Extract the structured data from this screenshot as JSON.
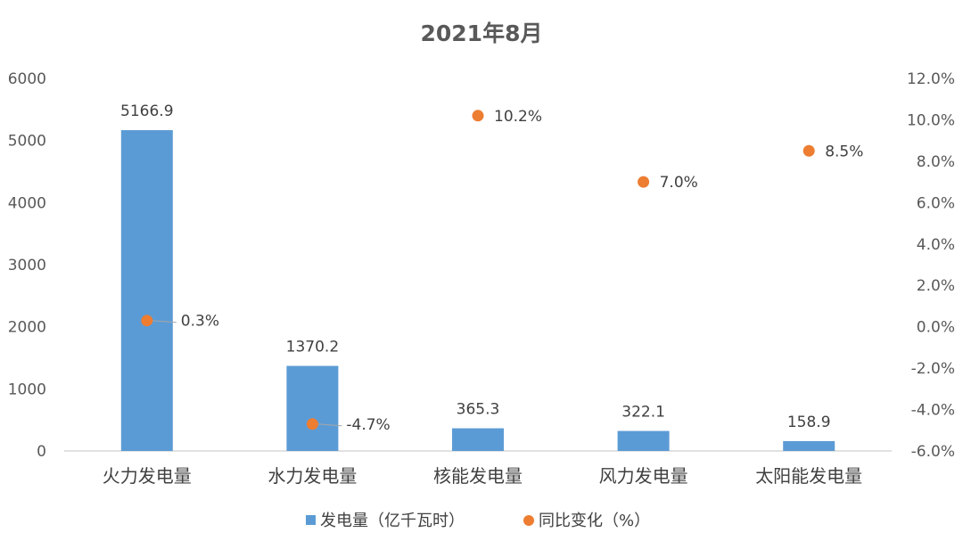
{
  "chart_data": {
    "type": "bar",
    "title": "2021年8月",
    "categories": [
      "火力发电量",
      "水力发电量",
      "核能发电量",
      "风力发电量",
      "太阳能发电量"
    ],
    "series": [
      {
        "name": "发电量（亿千瓦时）",
        "type": "bar",
        "axis": "left",
        "color": "#5B9BD5",
        "values": [
          5166.9,
          1370.2,
          365.3,
          322.1,
          158.9
        ],
        "labels": [
          "5166.9",
          "1370.2",
          "365.3",
          "322.1",
          "158.9"
        ]
      },
      {
        "name": "同比变化（%）",
        "type": "scatter",
        "axis": "right",
        "color": "#ED7D31",
        "values": [
          0.3,
          -4.7,
          10.2,
          7.0,
          8.5
        ],
        "labels": [
          "0.3%",
          "-4.7%",
          "10.2%",
          "7.0%",
          "8.5%"
        ]
      }
    ],
    "y_left": {
      "ylim": [
        0,
        6000
      ],
      "ticks": [
        "0",
        "1000",
        "2000",
        "3000",
        "4000",
        "5000",
        "6000"
      ]
    },
    "y_right": {
      "ylim": [
        -6,
        12
      ],
      "ticks": [
        "-6.0%",
        "-4.0%",
        "-2.0%",
        "0.0%",
        "2.0%",
        "4.0%",
        "6.0%",
        "8.0%",
        "10.0%",
        "12.0%"
      ]
    },
    "legend_position": "bottom",
    "grid": false
  }
}
